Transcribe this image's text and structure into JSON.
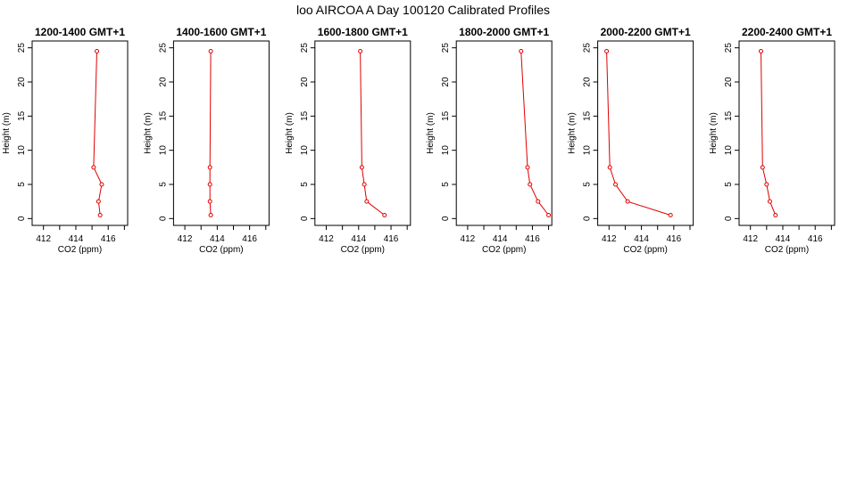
{
  "figure_title": "loo AIRCOA A  Day 100120  Calibrated Profiles",
  "colors": {
    "line": "#e00000",
    "marker": "#e00000",
    "axis": "#000000",
    "background": "#ffffff"
  },
  "chart_data": [
    {
      "type": "line",
      "title": "1200-1400 GMT+1",
      "xlabel": "CO2 (ppm)",
      "ylabel": "Height (m)",
      "xlim": [
        411.3,
        417.2
      ],
      "ylim": [
        -1,
        26
      ],
      "xticks": [
        412,
        414,
        416
      ],
      "yticks": [
        0,
        5,
        10,
        15,
        20,
        25
      ],
      "x": [
        415.5,
        415.4,
        415.6,
        415.1,
        415.3
      ],
      "y": [
        0.5,
        2.5,
        5,
        7.5,
        24.5
      ]
    },
    {
      "type": "line",
      "title": "1400-1600 GMT+1",
      "xlabel": "CO2 (ppm)",
      "ylabel": "Height (m)",
      "xlim": [
        411.3,
        417.2
      ],
      "ylim": [
        -1,
        26
      ],
      "xticks": [
        412,
        414,
        416
      ],
      "yticks": [
        0,
        5,
        10,
        15,
        20,
        25
      ],
      "x": [
        413.6,
        413.55,
        413.55,
        413.55,
        413.6
      ],
      "y": [
        0.5,
        2.5,
        5,
        7.5,
        24.5
      ]
    },
    {
      "type": "line",
      "title": "1600-1800 GMT+1",
      "xlabel": "CO2 (ppm)",
      "ylabel": "Height (m)",
      "xlim": [
        411.3,
        417.2
      ],
      "ylim": [
        -1,
        26
      ],
      "xticks": [
        412,
        414,
        416
      ],
      "yticks": [
        0,
        5,
        10,
        15,
        20,
        25
      ],
      "x": [
        415.6,
        414.5,
        414.35,
        414.2,
        414.1
      ],
      "y": [
        0.5,
        2.5,
        5,
        7.5,
        24.5
      ]
    },
    {
      "type": "line",
      "title": "1800-2000 GMT+1",
      "xlabel": "CO2 (ppm)",
      "ylabel": "Height (m)",
      "xlim": [
        411.3,
        417.2
      ],
      "ylim": [
        -1,
        26
      ],
      "xticks": [
        412,
        414,
        416
      ],
      "yticks": [
        0,
        5,
        10,
        15,
        20,
        25
      ],
      "x": [
        417.0,
        416.35,
        415.85,
        415.7,
        415.3
      ],
      "y": [
        0.5,
        2.5,
        5,
        7.5,
        24.5
      ]
    },
    {
      "type": "line",
      "title": "2000-2200 GMT+1",
      "xlabel": "CO2 (ppm)",
      "ylabel": "Height (m)",
      "xlim": [
        411.3,
        417.2
      ],
      "ylim": [
        -1,
        26
      ],
      "xticks": [
        412,
        414,
        416
      ],
      "yticks": [
        0,
        5,
        10,
        15,
        20,
        25
      ],
      "x": [
        415.8,
        413.15,
        412.4,
        412.05,
        411.85
      ],
      "y": [
        0.5,
        2.5,
        5,
        7.5,
        24.5
      ]
    },
    {
      "type": "line",
      "title": "2200-2400 GMT+1",
      "xlabel": "CO2 (ppm)",
      "ylabel": "Height (m)",
      "xlim": [
        411.3,
        417.2
      ],
      "ylim": [
        -1,
        26
      ],
      "xticks": [
        412,
        414,
        416
      ],
      "yticks": [
        0,
        5,
        10,
        15,
        20,
        25
      ],
      "x": [
        413.55,
        413.2,
        413.0,
        412.75,
        412.65
      ],
      "y": [
        0.5,
        2.5,
        5,
        7.5,
        24.5
      ]
    }
  ]
}
